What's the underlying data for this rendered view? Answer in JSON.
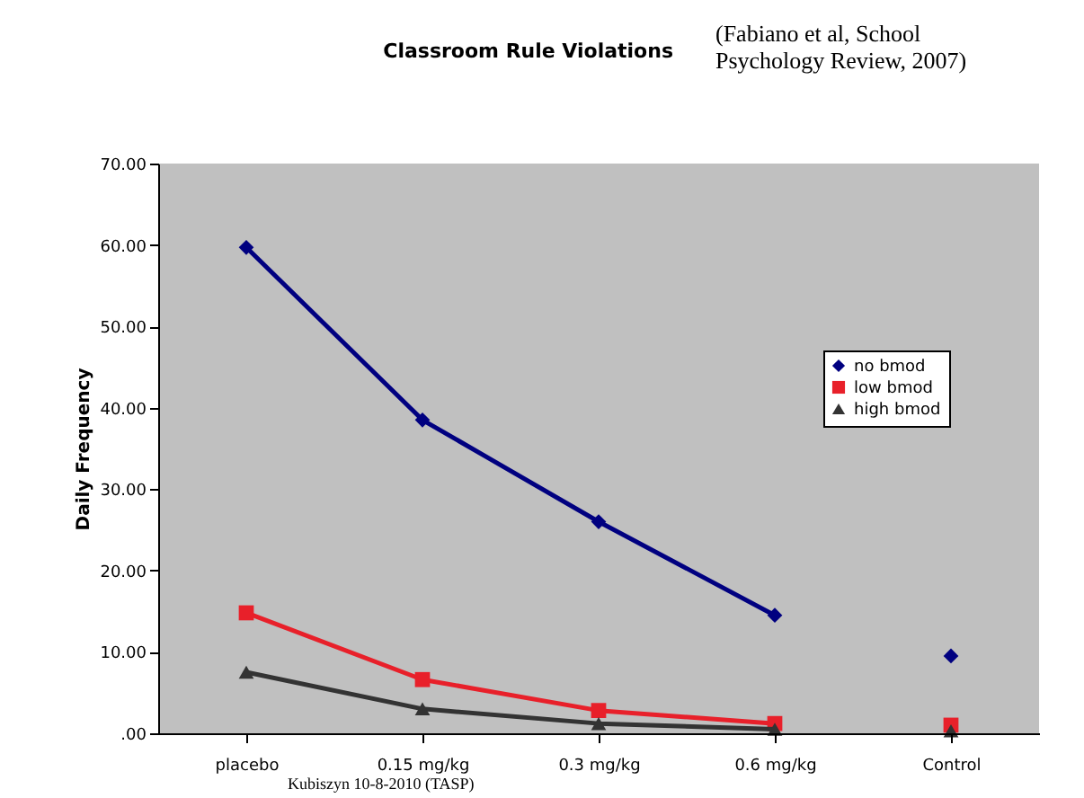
{
  "chart_data": {
    "type": "line",
    "title": "Classroom Rule Violations",
    "ylabel": "Daily Frequency",
    "categories": [
      "placebo",
      "0.15 mg/kg",
      "0.3 mg/kg",
      "0.6 mg/kg",
      "Control"
    ],
    "series": [
      {
        "name": "no bmod",
        "color": "#000080",
        "marker": "diamond",
        "values": [
          59.7,
          38.5,
          26.0,
          14.5,
          null
        ]
      },
      {
        "name": "low bmod",
        "color": "#e8202a",
        "marker": "square",
        "values": [
          14.8,
          6.6,
          2.8,
          1.2,
          null
        ]
      },
      {
        "name": "high bmod",
        "color": "#333333",
        "marker": "triangle",
        "values": [
          7.5,
          3.0,
          1.2,
          0.5,
          null
        ]
      },
      {
        "type": "scatter",
        "color": "#000080",
        "marker": "diamond",
        "values": [
          null,
          null,
          null,
          null,
          9.5
        ]
      },
      {
        "type": "scatter",
        "color": "#e8202a",
        "marker": "square",
        "values": [
          null,
          null,
          null,
          null,
          1.0
        ]
      },
      {
        "type": "scatter",
        "color": "#333333",
        "marker": "triangle",
        "values": [
          null,
          null,
          null,
          null,
          0.3
        ]
      }
    ],
    "ylim": [
      0,
      70
    ],
    "yticks": [
      {
        "value": 0,
        "label": ".00"
      },
      {
        "value": 10,
        "label": "10.00"
      },
      {
        "value": 20,
        "label": "20.00"
      },
      {
        "value": 30,
        "label": "30.00"
      },
      {
        "value": 40,
        "label": "40.00"
      },
      {
        "value": 50,
        "label": "50.00"
      },
      {
        "value": 60,
        "label": "60.00"
      },
      {
        "value": 70,
        "label": "70.00"
      }
    ],
    "grid": false,
    "legend": "right",
    "annotations": [
      "(Fabiano et al, School Psychology Review, 2007)",
      "Kubiszyn 10-8-2010 (TASP)"
    ]
  }
}
